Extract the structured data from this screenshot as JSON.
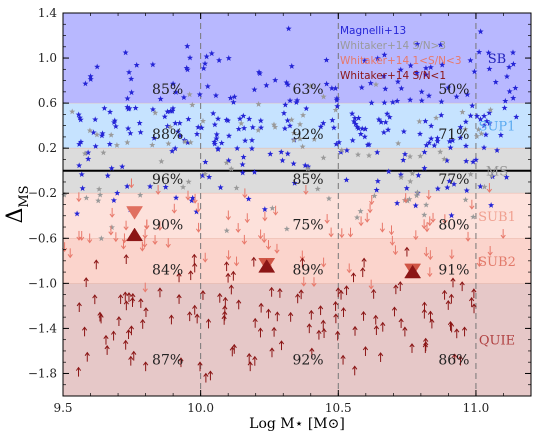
{
  "chart_data": {
    "type": "scatter",
    "xlabel": "Log M⋆ [M⊙]",
    "ylabel": "ΔMS",
    "xlim": [
      9.5,
      11.2
    ],
    "ylim": [
      -2.0,
      1.4
    ],
    "x_ticks": [
      9.5,
      10.0,
      10.5,
      11.0
    ],
    "x_tick_labels": [
      "9.5",
      "10.0",
      "10.5",
      "11.0"
    ],
    "y_ticks": [
      1.4,
      1.0,
      0.6,
      0.2,
      -0.2,
      -0.6,
      -1.0,
      -1.4,
      -1.8
    ],
    "y_tick_labels": [
      "1.4",
      "1.0",
      "0.6",
      "0.2",
      "−0.2",
      "−0.6",
      "−1.0",
      "−1.4",
      "−1.8"
    ],
    "mass_bin_edges": [
      10.0,
      10.5,
      11.0
    ],
    "main_sequence_y": 0.0,
    "bands": [
      {
        "name": "SB",
        "y0": 0.6,
        "y1": 1.4,
        "color": "#b8b8ff",
        "label_color": "#2222bb"
      },
      {
        "name": "SUP1",
        "y0": 0.2,
        "y1": 0.6,
        "color": "#c6e3ff",
        "label_color": "#5aaaf0"
      },
      {
        "name": "MS",
        "y0": -0.2,
        "y1": 0.2,
        "color": "#dcdcdc",
        "label_color": "#999999"
      },
      {
        "name": "SUB1",
        "y0": -0.6,
        "y1": -0.2,
        "color": "#fde1db",
        "label_color": "#f0a090"
      },
      {
        "name": "SUB2",
        "y0": -1.0,
        "y1": -0.6,
        "color": "#fbd4cc",
        "label_color": "#e27a6a"
      },
      {
        "name": "QUIE",
        "y0": -2.0,
        "y1": -1.0,
        "color": "#e6c8c8",
        "label_color": "#b04040"
      }
    ],
    "percentages": [
      {
        "band": "SB",
        "y": 0.68,
        "values": [
          "85%",
          "63%",
          "50%"
        ]
      },
      {
        "band": "SUP1",
        "y": 0.28,
        "values": [
          "88%",
          "92%",
          "71%"
        ]
      },
      {
        "band": "MS",
        "y": -0.12,
        "values": [
          "96%",
          "85%",
          "77%"
        ]
      },
      {
        "band": "SUB1",
        "y": -0.52,
        "values": [
          "90%",
          "75%",
          "80%"
        ]
      },
      {
        "band": "SUB2",
        "y": -0.92,
        "values": [
          "84%",
          "89%",
          "91%"
        ]
      },
      {
        "band": "QUIE",
        "y": -1.72,
        "values": [
          "87%",
          "92%",
          "86%"
        ]
      }
    ],
    "legend": {
      "placement": "top-right",
      "entries": [
        {
          "label": "Magnelli+13",
          "color": "#2525d6"
        },
        {
          "label": "Whitaker+14 S/N>3",
          "color": "#9a9a9a"
        },
        {
          "label": "Whitaker+14 1<S/N<3",
          "color": "#e8786a"
        },
        {
          "label": "Whitaker+14 S/N<1",
          "color": "#8b1515"
        }
      ]
    },
    "series": [
      {
        "name": "Magnelli+13",
        "marker": "star",
        "color": "#2525d6",
        "count": 300,
        "x_range": [
          9.55,
          11.15
        ],
        "y_range": [
          -0.45,
          1.3
        ]
      },
      {
        "name": "Whitaker+14 S/N>3",
        "marker": "star",
        "color": "#9a9a9a",
        "count": 90,
        "x_range": [
          9.5,
          11.1
        ],
        "y_range": [
          -0.7,
          0.9
        ]
      },
      {
        "name": "Whitaker+14 1<S/N<3",
        "marker": "arrow-down",
        "color": "#e8786a",
        "count": 80,
        "x_range": [
          9.5,
          11.1
        ],
        "y_range": [
          -1.05,
          0.05
        ]
      },
      {
        "name": "Whitaker+14 S/N<1",
        "marker": "arrow-up",
        "color": "#8b1515",
        "count": 130,
        "x_range": [
          9.55,
          11.0
        ],
        "y_range": [
          -1.95,
          -0.7
        ]
      }
    ],
    "stacked_points": [
      {
        "x": 9.76,
        "y": -0.36,
        "marker": "triangle-down",
        "color": "#e07060"
      },
      {
        "x": 9.76,
        "y": -0.58,
        "marker": "triangle-up",
        "color": "#8b1515"
      },
      {
        "x": 10.24,
        "y": -0.82,
        "marker": "triangle-down",
        "color": "#d05545"
      },
      {
        "x": 10.24,
        "y": -0.86,
        "marker": "triangle-up",
        "color": "#8b1515"
      },
      {
        "x": 10.77,
        "y": -0.87,
        "marker": "triangle-down",
        "color": "#d05545"
      },
      {
        "x": 10.77,
        "y": -0.91,
        "marker": "triangle-up",
        "color": "#8b1515"
      }
    ]
  }
}
